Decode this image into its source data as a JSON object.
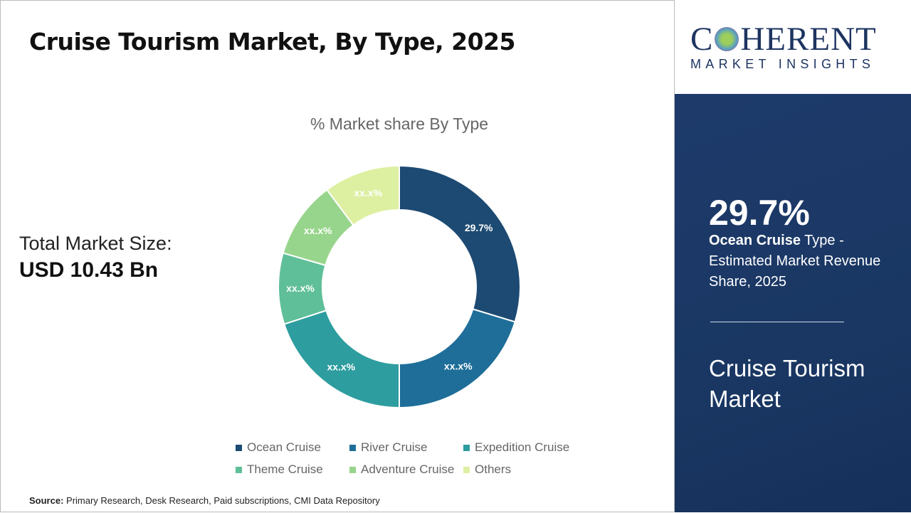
{
  "title": "Cruise Tourism Market, By Type, 2025",
  "total_label": "Total Market Size:",
  "total_value": "USD 10.43 Bn",
  "source_label": "Source:",
  "source_text": " Primary Research, Desk Research, Paid subscriptions, CMI Data Repository",
  "logo": {
    "line1": "COHERENT",
    "line2": "MARKET INSIGHTS"
  },
  "panel": {
    "highlight": "29.7%",
    "bold": "Ocean Cruise",
    "desc": " Type - Estimated Market Revenue Share, 2025",
    "market": "Cruise Tourism Market"
  },
  "chart_data": {
    "type": "pie",
    "donut": true,
    "title": "% Market share By Type",
    "categories": [
      "Ocean Cruise",
      "River Cruise",
      "Expedition Cruise",
      "Theme Cruise",
      "Adventure Cruise",
      "Others"
    ],
    "values": [
      29.7,
      20.3,
      20.0,
      9.5,
      10.3,
      10.2
    ],
    "labels": [
      "29.7%",
      "xx.x%",
      "xx.x%",
      "xx.x%",
      "xx.x%",
      "xx.x%"
    ],
    "colors": [
      "#1c4a72",
      "#1f6e99",
      "#2e9d9f",
      "#5fbf98",
      "#98d58c",
      "#ddf0a2"
    ],
    "label_colors": [
      "#ffffff",
      "#ffffff",
      "#ffffff",
      "#ffffff",
      "#ffffff",
      "#ffffff"
    ],
    "legend": "bottom"
  }
}
